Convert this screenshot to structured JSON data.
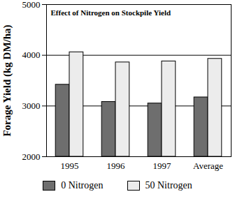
{
  "chart_data": {
    "type": "bar",
    "title": "Effect of Nitrogen on Stockpile Yield",
    "y_label": "Forage Yield (kg DM/ha)",
    "categories": [
      "1995",
      "1996",
      "1997",
      "Average"
    ],
    "series": [
      {
        "name": "0 Nitrogen",
        "color": "#6e6e6e",
        "values": [
          3420,
          3080,
          3050,
          3170
        ]
      },
      {
        "name": "50 Nitrogen",
        "color": "#ececec",
        "values": [
          4060,
          3860,
          3880,
          3930
        ]
      }
    ],
    "ylim": [
      2000,
      5000
    ],
    "yticks": [
      2000,
      3000,
      4000,
      5000
    ],
    "grid": true,
    "legend": "bottom"
  }
}
